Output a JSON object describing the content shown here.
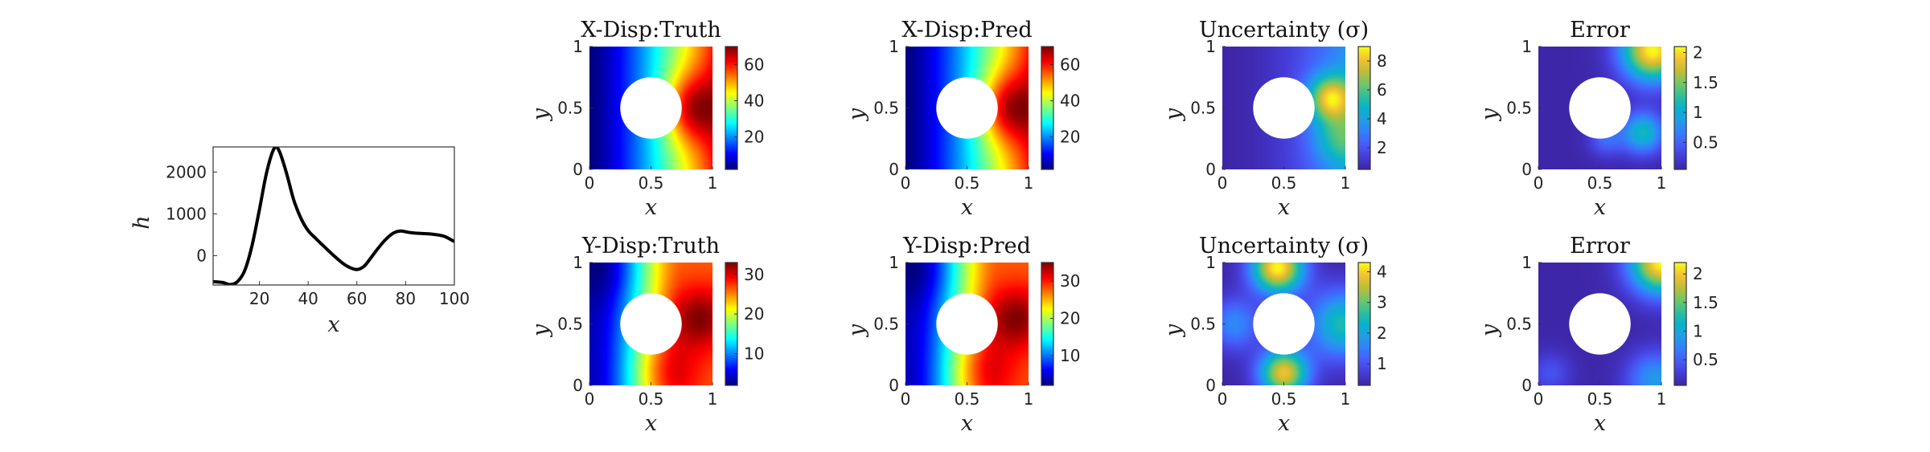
{
  "colors": {
    "background": "#ffffff",
    "line": "#000000",
    "axis": "#333333",
    "hole": "#ffffff"
  },
  "chart_data": [
    {
      "type": "line",
      "xlabel": "x",
      "ylabel": "h",
      "xlim": [
        1,
        100
      ],
      "ylim": [
        -700,
        2600
      ],
      "xticks": [
        20,
        40,
        60,
        80,
        100
      ],
      "yticks": [
        0,
        1000,
        2000
      ],
      "x": [
        1,
        5,
        8,
        11,
        14,
        17,
        20,
        23,
        26,
        28,
        31,
        34,
        37,
        40,
        43,
        46,
        50,
        54,
        57,
        60,
        63,
        66,
        69,
        72,
        75,
        78,
        81,
        84,
        87,
        90,
        93,
        96,
        100
      ],
      "y": [
        -620,
        -640,
        -690,
        -620,
        -350,
        250,
        1100,
        2000,
        2560,
        2520,
        2000,
        1350,
        900,
        600,
        420,
        250,
        30,
        -170,
        -280,
        -330,
        -250,
        -30,
        200,
        400,
        540,
        590,
        560,
        540,
        530,
        520,
        500,
        460,
        340
      ]
    },
    {
      "type": "heatmap",
      "title": "X-Disp:Truth",
      "xlabel": "x",
      "ylabel": "y",
      "xlim": [
        0,
        1
      ],
      "ylim": [
        0,
        1
      ],
      "xticks": [
        0,
        0.5,
        1
      ],
      "yticks": [
        0,
        0.5,
        1
      ],
      "colormap": "jet",
      "clim": [
        2,
        70
      ],
      "cbar_ticks": [
        20,
        40,
        60
      ],
      "field": "xdisp",
      "hole": {
        "cx": 0.5,
        "cy": 0.5,
        "r": 0.25
      }
    },
    {
      "type": "heatmap",
      "title": "X-Disp:Pred",
      "xlabel": "x",
      "ylabel": "y",
      "xlim": [
        0,
        1
      ],
      "ylim": [
        0,
        1
      ],
      "xticks": [
        0,
        0.5,
        1
      ],
      "yticks": [
        0,
        0.5,
        1
      ],
      "colormap": "jet",
      "clim": [
        2,
        70
      ],
      "cbar_ticks": [
        20,
        40,
        60
      ],
      "field": "xdisp",
      "hole": {
        "cx": 0.5,
        "cy": 0.5,
        "r": 0.25
      }
    },
    {
      "type": "heatmap",
      "title": "Uncertainty (σ)",
      "xlabel": "x",
      "ylabel": "y",
      "xlim": [
        0,
        1
      ],
      "ylim": [
        0,
        1
      ],
      "xticks": [
        0,
        0.5,
        1
      ],
      "yticks": [
        0,
        0.5,
        1
      ],
      "colormap": "parula",
      "clim": [
        0.5,
        9
      ],
      "cbar_ticks": [
        2,
        4,
        6,
        8
      ],
      "field": "xunc",
      "hole": {
        "cx": 0.5,
        "cy": 0.5,
        "r": 0.25
      }
    },
    {
      "type": "heatmap",
      "title": "Error",
      "xlabel": "x",
      "ylabel": "y",
      "xlim": [
        0,
        1
      ],
      "ylim": [
        0,
        1
      ],
      "xticks": [
        0,
        0.5,
        1
      ],
      "yticks": [
        0,
        0.5,
        1
      ],
      "colormap": "parula",
      "clim": [
        0.05,
        2.1
      ],
      "cbar_ticks": [
        0.5,
        1,
        1.5,
        2
      ],
      "field": "xerr",
      "hole": {
        "cx": 0.5,
        "cy": 0.5,
        "r": 0.25
      }
    },
    {
      "type": "heatmap",
      "title": "Y-Disp:Truth",
      "xlabel": "x",
      "ylabel": "y",
      "xlim": [
        0,
        1
      ],
      "ylim": [
        0,
        1
      ],
      "xticks": [
        0,
        0.5,
        1
      ],
      "yticks": [
        0,
        0.5,
        1
      ],
      "colormap": "jet",
      "clim": [
        2,
        33
      ],
      "cbar_ticks": [
        10,
        20,
        30
      ],
      "field": "ydisp",
      "hole": {
        "cx": 0.5,
        "cy": 0.5,
        "r": 0.25
      }
    },
    {
      "type": "heatmap",
      "title": "Y-Disp:Pred",
      "xlabel": "x",
      "ylabel": "y",
      "xlim": [
        0,
        1
      ],
      "ylim": [
        0,
        1
      ],
      "xticks": [
        0,
        0.5,
        1
      ],
      "yticks": [
        0,
        0.5,
        1
      ],
      "colormap": "jet",
      "clim": [
        2,
        35
      ],
      "cbar_ticks": [
        10,
        20,
        30
      ],
      "field": "ydisp",
      "hole": {
        "cx": 0.5,
        "cy": 0.5,
        "r": 0.25
      }
    },
    {
      "type": "heatmap",
      "title": "Uncertainty (σ)",
      "xlabel": "x",
      "ylabel": "y",
      "xlim": [
        0,
        1
      ],
      "ylim": [
        0,
        1
      ],
      "xticks": [
        0,
        0.5,
        1
      ],
      "yticks": [
        0,
        0.5,
        1
      ],
      "colormap": "parula",
      "clim": [
        0.3,
        4.3
      ],
      "cbar_ticks": [
        1,
        2,
        3,
        4
      ],
      "field": "yunc",
      "hole": {
        "cx": 0.5,
        "cy": 0.5,
        "r": 0.25
      }
    },
    {
      "type": "heatmap",
      "title": "Error",
      "xlabel": "x",
      "ylabel": "y",
      "xlim": [
        0,
        1
      ],
      "ylim": [
        0,
        1
      ],
      "xticks": [
        0,
        0.5,
        1
      ],
      "yticks": [
        0,
        0.5,
        1
      ],
      "colormap": "parula",
      "clim": [
        0.05,
        2.2
      ],
      "cbar_ticks": [
        0.5,
        1,
        1.5,
        2
      ],
      "field": "yerr",
      "hole": {
        "cx": 0.5,
        "cy": 0.5,
        "r": 0.25
      }
    }
  ]
}
